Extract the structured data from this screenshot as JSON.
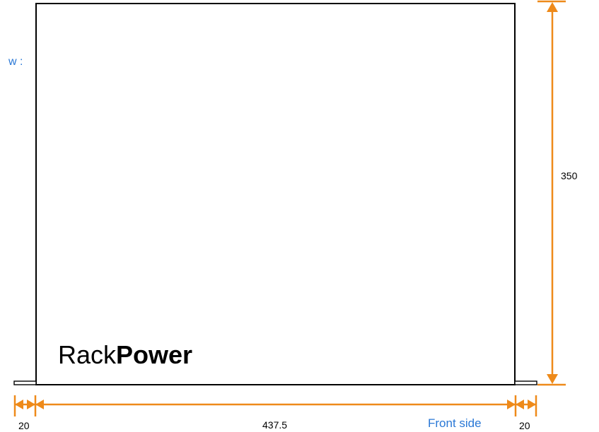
{
  "view_label": "w :",
  "brand": {
    "part1": "Rack",
    "part2": "Power"
  },
  "dimensions": {
    "height": "350",
    "width": "437.5",
    "left_ear": "20",
    "right_ear": "20"
  },
  "side_label": "Front side",
  "colors": {
    "dimension": "#ee8a1a",
    "label_accent": "#2a78d6",
    "outline": "#000000"
  }
}
